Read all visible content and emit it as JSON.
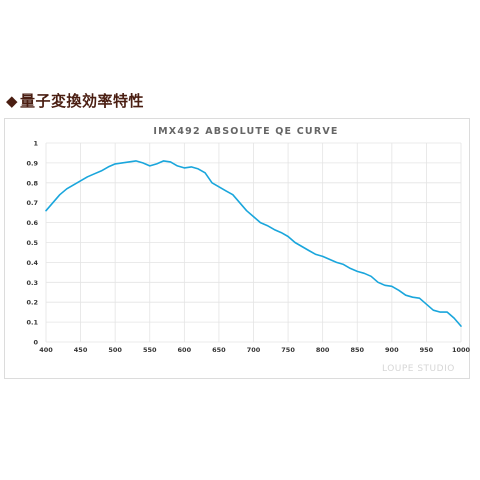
{
  "heading": {
    "mark": "◆",
    "text": "量子変換効率特性"
  },
  "watermark": "LOUPE STUDIO",
  "colors": {
    "line": "#1aa6dc",
    "grid": "#e4e4e4",
    "panel_border": "#dcdcdc"
  },
  "chart_data": {
    "type": "line",
    "title": "IMX492 ABSOLUTE QE CURVE",
    "xlabel": "",
    "ylabel": "",
    "xlim": [
      400,
      1000
    ],
    "ylim": [
      0,
      1
    ],
    "grid": true,
    "x_ticks": [
      400,
      450,
      500,
      550,
      600,
      650,
      700,
      750,
      800,
      850,
      900,
      950,
      1000
    ],
    "y_ticks": [
      0,
      0.1,
      0.2,
      0.3,
      0.4,
      0.5,
      0.6,
      0.7,
      0.8,
      0.9,
      1
    ],
    "series": [
      {
        "x": [
          400,
          410,
          420,
          430,
          440,
          450,
          460,
          470,
          480,
          490,
          500,
          510,
          520,
          530,
          540,
          550,
          560,
          570,
          580,
          590,
          600,
          610,
          620,
          630,
          640,
          650,
          660,
          670,
          680,
          690,
          700,
          710,
          720,
          730,
          740,
          750,
          760,
          770,
          780,
          790,
          800,
          810,
          820,
          830,
          840,
          850,
          860,
          870,
          880,
          890,
          900,
          910,
          920,
          930,
          940,
          950,
          960,
          970,
          980,
          990,
          1000
        ],
        "y": [
          0.66,
          0.7,
          0.74,
          0.77,
          0.79,
          0.81,
          0.83,
          0.845,
          0.86,
          0.88,
          0.895,
          0.9,
          0.905,
          0.91,
          0.9,
          0.885,
          0.895,
          0.91,
          0.905,
          0.885,
          0.875,
          0.88,
          0.87,
          0.85,
          0.8,
          0.78,
          0.76,
          0.74,
          0.7,
          0.66,
          0.63,
          0.6,
          0.585,
          0.565,
          0.55,
          0.53,
          0.5,
          0.48,
          0.46,
          0.44,
          0.43,
          0.415,
          0.4,
          0.39,
          0.37,
          0.355,
          0.345,
          0.33,
          0.3,
          0.285,
          0.28,
          0.26,
          0.235,
          0.225,
          0.22,
          0.19,
          0.16,
          0.15,
          0.15,
          0.12,
          0.08
        ]
      }
    ]
  }
}
